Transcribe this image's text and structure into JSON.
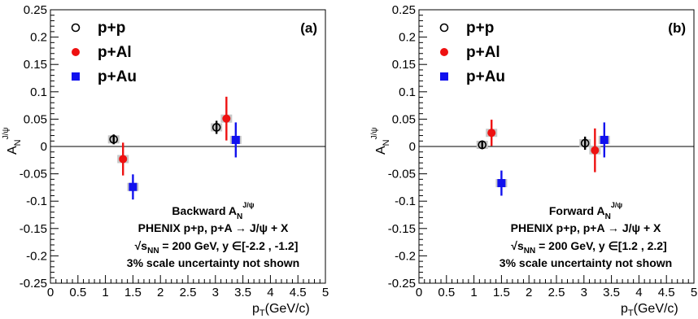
{
  "chart_data": [
    {
      "panel": "(a)",
      "type": "scatter",
      "xlabel": "p_T(GeV/c)",
      "ylabel": "A_N^{J/ψ}",
      "xlim": [
        0,
        5
      ],
      "ylim": [
        -0.25,
        0.25
      ],
      "x_ticks": [
        "0",
        "0.5",
        "1",
        "1.5",
        "2",
        "2.5",
        "3",
        "3.5",
        "4",
        "4.5",
        "5"
      ],
      "y_ticks": [
        "0.25",
        "0.2",
        "0.15",
        "0.1",
        "0.05",
        "0",
        "-0.05",
        "-0.1",
        "-0.15",
        "-0.2",
        "-0.25"
      ],
      "legend": [
        "p+p",
        "p+Al",
        "p+Au"
      ],
      "annotation": [
        "Backward A_N^{J/ψ}",
        "PHENIX p+p, p+A → J/ψ + X",
        "√s_NN = 200 GeV,  y ∈[-2.2 , -1.2]",
        "3% scale uncertainty not shown"
      ],
      "series": [
        {
          "name": "p+p",
          "color": "#000000",
          "marker": "open-circle",
          "points": [
            {
              "x": 1.15,
              "y": 0.013,
              "err": 0.009
            },
            {
              "x": 3.02,
              "y": 0.035,
              "err": 0.012
            }
          ]
        },
        {
          "name": "p+Al",
          "color": "#ee1111",
          "marker": "filled-circle",
          "points": [
            {
              "x": 1.32,
              "y": -0.023,
              "err": 0.03
            },
            {
              "x": 3.2,
              "y": 0.051,
              "err": 0.04
            }
          ]
        },
        {
          "name": "p+Au",
          "color": "#1111ee",
          "marker": "filled-square",
          "points": [
            {
              "x": 1.5,
              "y": -0.074,
              "err": 0.023
            },
            {
              "x": 3.37,
              "y": 0.012,
              "err": 0.032
            }
          ]
        }
      ]
    },
    {
      "panel": "(b)",
      "type": "scatter",
      "xlabel": "p_T(GeV/c)",
      "ylabel": "A_N^{J/ψ}",
      "xlim": [
        0,
        5
      ],
      "ylim": [
        -0.25,
        0.25
      ],
      "x_ticks": [
        "0",
        "0.5",
        "1",
        "1.5",
        "2",
        "2.5",
        "3",
        "3.5",
        "4",
        "4.5",
        "5"
      ],
      "y_ticks": [
        "0.25",
        "0.2",
        "0.15",
        "0.1",
        "0.05",
        "0",
        "-0.05",
        "-0.1",
        "-0.15",
        "-0.2",
        "-0.25"
      ],
      "legend": [
        "p+p",
        "p+Al",
        "p+Au"
      ],
      "annotation": [
        "Forward A_N^{J/ψ}",
        "PHENIX p+p, p+A → J/ψ + X",
        "√s_NN = 200 GeV,  y ∈[1.2 , 2.2]",
        "3% scale uncertainty not shown"
      ],
      "series": [
        {
          "name": "p+p",
          "color": "#000000",
          "marker": "open-circle",
          "points": [
            {
              "x": 1.15,
              "y": 0.003,
              "err": 0.008
            },
            {
              "x": 3.02,
              "y": 0.006,
              "err": 0.012
            }
          ]
        },
        {
          "name": "p+Al",
          "color": "#ee1111",
          "marker": "filled-circle",
          "points": [
            {
              "x": 1.32,
              "y": 0.025,
              "err": 0.024
            },
            {
              "x": 3.2,
              "y": -0.007,
              "err": 0.04
            }
          ]
        },
        {
          "name": "p+Au",
          "color": "#1111ee",
          "marker": "filled-square",
          "points": [
            {
              "x": 1.5,
              "y": -0.067,
              "err": 0.023
            },
            {
              "x": 3.37,
              "y": 0.012,
              "err": 0.032
            }
          ]
        }
      ]
    }
  ]
}
